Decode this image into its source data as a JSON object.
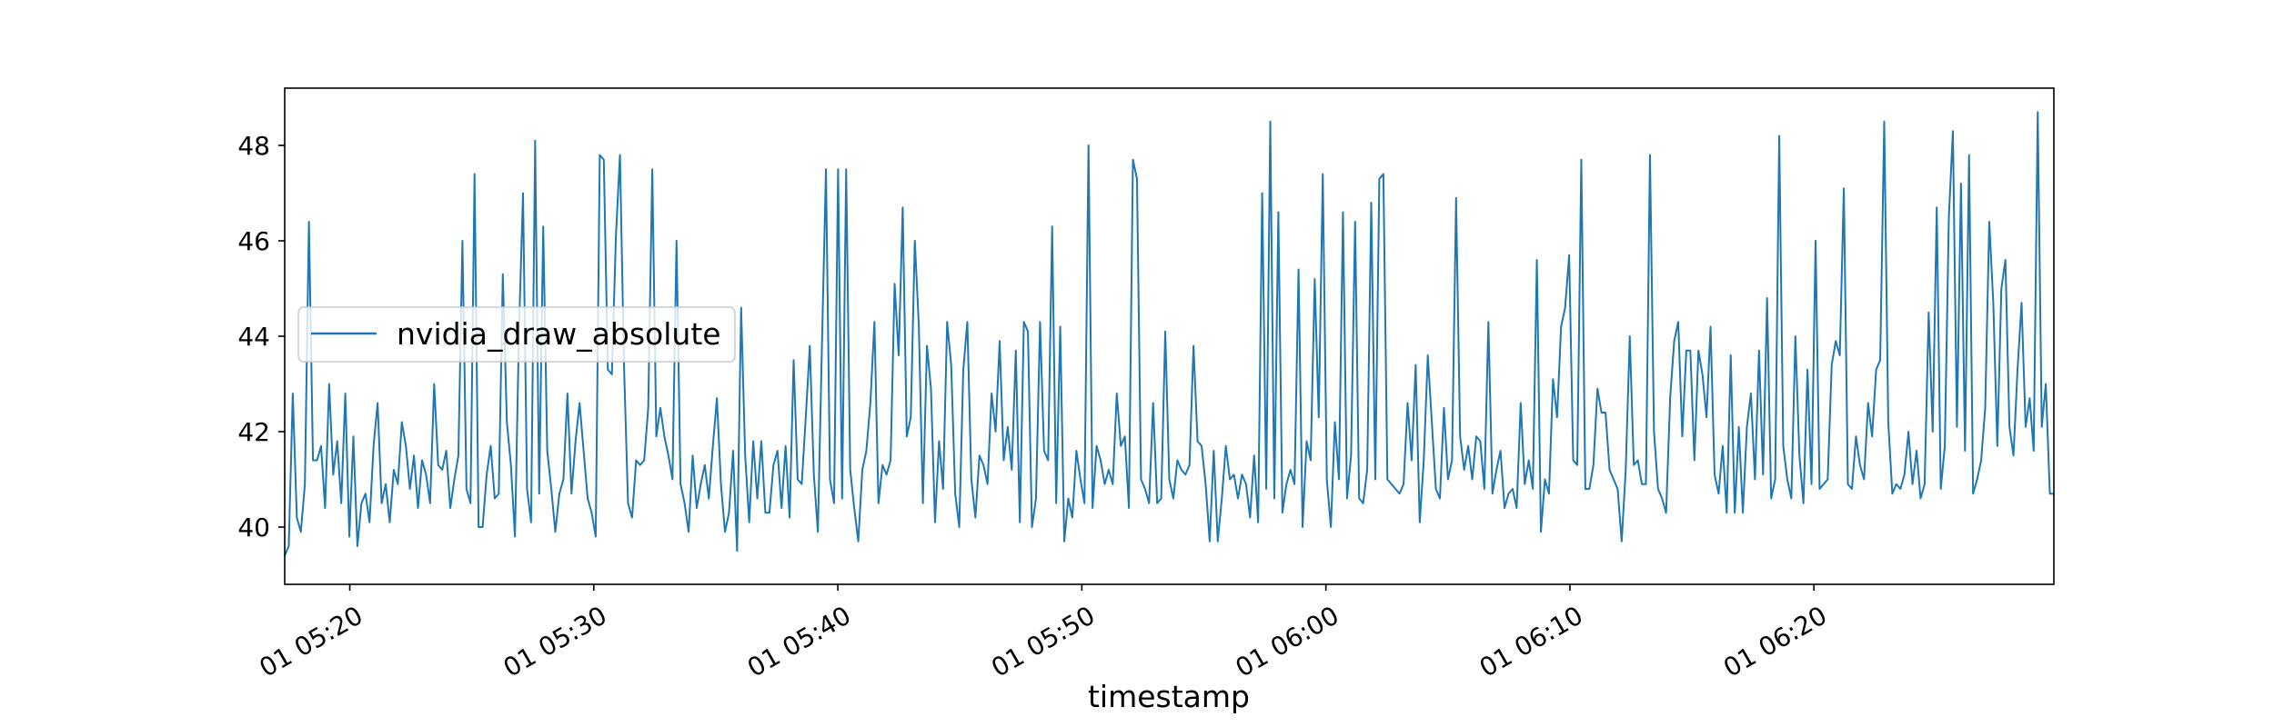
{
  "chart_data": {
    "type": "line",
    "title": "",
    "xlabel": "timestamp",
    "ylabel": "",
    "x_start": "01 05:17:20",
    "x_end": "01 06:29:50",
    "xlim": [
      "01 05:17:20",
      "01 06:29:50"
    ],
    "ylim": [
      38.8,
      49.2
    ],
    "x_ticks": [
      {
        "value": "01 05:20",
        "label": "01 05:20"
      },
      {
        "value": "01 05:30",
        "label": "01 05:30"
      },
      {
        "value": "01 05:40",
        "label": "01 05:40"
      },
      {
        "value": "01 05:50",
        "label": "01 05:50"
      },
      {
        "value": "01 06:00",
        "label": "01 06:00"
      },
      {
        "value": "01 06:10",
        "label": "01 06:10"
      },
      {
        "value": "01 06:20",
        "label": "01 06:20"
      }
    ],
    "y_ticks": [
      40,
      42,
      44,
      46,
      48
    ],
    "y_tick_labels": [
      "40",
      "42",
      "44",
      "46",
      "48"
    ],
    "grid": false,
    "legend": {
      "position": "center-left"
    },
    "series": [
      {
        "name": "nvidia_draw_absolute",
        "color": "#1f77b4",
        "values": [
          39.4,
          39.6,
          42.8,
          40.2,
          39.9,
          40.9,
          46.4,
          41.4,
          41.4,
          41.7,
          40.4,
          43.0,
          41.1,
          41.8,
          40.5,
          42.8,
          39.8,
          41.9,
          39.6,
          40.5,
          40.7,
          40.1,
          41.7,
          42.6,
          40.5,
          40.9,
          40.1,
          41.2,
          40.9,
          42.2,
          41.7,
          40.8,
          41.5,
          40.4,
          41.4,
          41.1,
          40.5,
          43.0,
          41.3,
          41.2,
          41.6,
          40.4,
          41.0,
          41.5,
          46.0,
          40.8,
          40.5,
          47.4,
          40.0,
          40.0,
          41.1,
          41.7,
          40.6,
          40.7,
          45.3,
          42.2,
          41.3,
          39.8,
          44.1,
          47.0,
          40.8,
          40.1,
          48.1,
          40.7,
          46.3,
          41.6,
          40.8,
          39.9,
          40.7,
          41.0,
          42.8,
          40.7,
          41.8,
          42.6,
          41.6,
          40.6,
          40.3,
          39.8,
          47.8,
          47.7,
          43.3,
          43.2,
          46.1,
          47.8,
          43.4,
          40.5,
          40.2,
          41.4,
          41.3,
          41.4,
          42.5,
          47.5,
          41.9,
          42.5,
          41.9,
          41.5,
          41.0,
          46.0,
          40.9,
          40.5,
          39.9,
          41.5,
          40.4,
          40.9,
          41.3,
          40.6,
          41.7,
          42.7,
          40.9,
          39.9,
          40.3,
          41.6,
          39.5,
          44.6,
          41.5,
          40.1,
          41.8,
          40.6,
          41.8,
          40.3,
          40.3,
          41.3,
          41.6,
          40.4,
          41.7,
          40.2,
          43.5,
          41.0,
          40.9,
          42.3,
          43.8,
          41.1,
          39.9,
          43.8,
          47.5,
          41.0,
          40.5,
          47.5,
          40.6,
          47.5,
          41.2,
          40.4,
          39.7,
          41.2,
          41.6,
          42.6,
          44.3,
          40.5,
          41.3,
          41.1,
          41.4,
          45.1,
          43.6,
          46.7,
          41.9,
          42.3,
          46.0,
          44.2,
          40.5,
          43.8,
          42.9,
          40.1,
          41.8,
          40.8,
          44.3,
          43.4,
          40.7,
          40.0,
          43.3,
          44.3,
          41.0,
          40.2,
          41.5,
          41.3,
          40.9,
          42.8,
          42.0,
          43.9,
          41.4,
          42.1,
          41.2,
          43.7,
          40.1,
          44.3,
          44.1,
          40.0,
          40.6,
          44.3,
          41.6,
          41.4,
          46.3,
          40.5,
          44.2,
          39.7,
          40.6,
          40.2,
          41.6,
          41.0,
          40.5,
          48.0,
          40.4,
          41.7,
          41.4,
          40.9,
          41.2,
          40.9,
          42.8,
          41.7,
          41.9,
          40.4,
          47.7,
          47.3,
          41.0,
          40.8,
          40.5,
          42.6,
          40.5,
          40.6,
          44.1,
          41.0,
          40.6,
          41.4,
          41.2,
          41.1,
          41.3,
          43.8,
          41.8,
          41.7,
          40.9,
          39.7,
          41.6,
          39.7,
          40.6,
          41.7,
          41.0,
          41.1,
          40.6,
          41.1,
          40.9,
          40.2,
          41.5,
          40.1,
          47.0,
          40.8,
          48.5,
          40.6,
          46.6,
          40.3,
          40.9,
          41.2,
          40.9,
          45.4,
          40.0,
          41.8,
          41.4,
          45.2,
          42.3,
          47.4,
          41.0,
          40.0,
          42.2,
          41.0,
          46.6,
          40.6,
          41.5,
          46.4,
          40.6,
          40.5,
          41.2,
          46.8,
          41.0,
          47.3,
          47.4,
          41.0,
          40.9,
          40.8,
          40.7,
          40.9,
          42.6,
          41.4,
          43.4,
          40.1,
          41.4,
          43.6,
          42.2,
          40.8,
          40.6,
          42.5,
          41.0,
          41.4,
          46.9,
          41.9,
          41.2,
          41.7,
          41.0,
          41.9,
          41.8,
          40.8,
          44.3,
          40.7,
          41.2,
          41.6,
          40.4,
          40.7,
          40.8,
          40.4,
          42.6,
          40.9,
          41.4,
          40.8,
          45.6,
          39.9,
          41.0,
          40.7,
          43.1,
          42.3,
          44.2,
          44.6,
          45.7,
          41.4,
          41.3,
          47.7,
          40.8,
          40.8,
          41.3,
          42.9,
          42.4,
          42.4,
          41.2,
          41.0,
          40.8,
          39.7,
          41.2,
          44.0,
          41.3,
          41.4,
          40.9,
          40.9,
          47.8,
          42.0,
          40.8,
          40.6,
          40.3,
          42.7,
          43.9,
          44.3,
          41.9,
          43.7,
          43.7,
          41.4,
          43.7,
          43.2,
          42.3,
          44.2,
          41.1,
          40.7,
          41.7,
          40.3,
          43.6,
          40.3,
          42.1,
          40.3,
          42.1,
          42.8,
          41.0,
          43.7,
          41.1,
          44.8,
          40.6,
          41.0,
          48.2,
          41.7,
          41.0,
          40.6,
          44.0,
          41.5,
          40.5,
          43.3,
          40.9,
          46.0,
          40.8,
          40.9,
          41.0,
          43.4,
          43.9,
          43.6,
          47.1,
          40.9,
          40.8,
          41.9,
          41.3,
          41.0,
          42.6,
          41.9,
          43.3,
          43.5,
          48.5,
          42.2,
          40.7,
          40.9,
          40.8,
          41.1,
          42.0,
          40.9,
          41.6,
          40.6,
          40.9,
          44.5,
          42.0,
          46.7,
          40.8,
          41.7,
          46.5,
          48.3,
          42.1,
          47.2,
          41.6,
          47.8,
          40.7,
          41.0,
          41.4,
          42.5,
          46.4,
          44.7,
          41.7,
          45.0,
          45.6,
          42.1,
          41.5,
          43.3,
          44.7,
          42.1,
          42.7,
          41.6,
          48.7,
          42.1,
          43.0,
          40.7,
          40.7
        ]
      }
    ]
  }
}
